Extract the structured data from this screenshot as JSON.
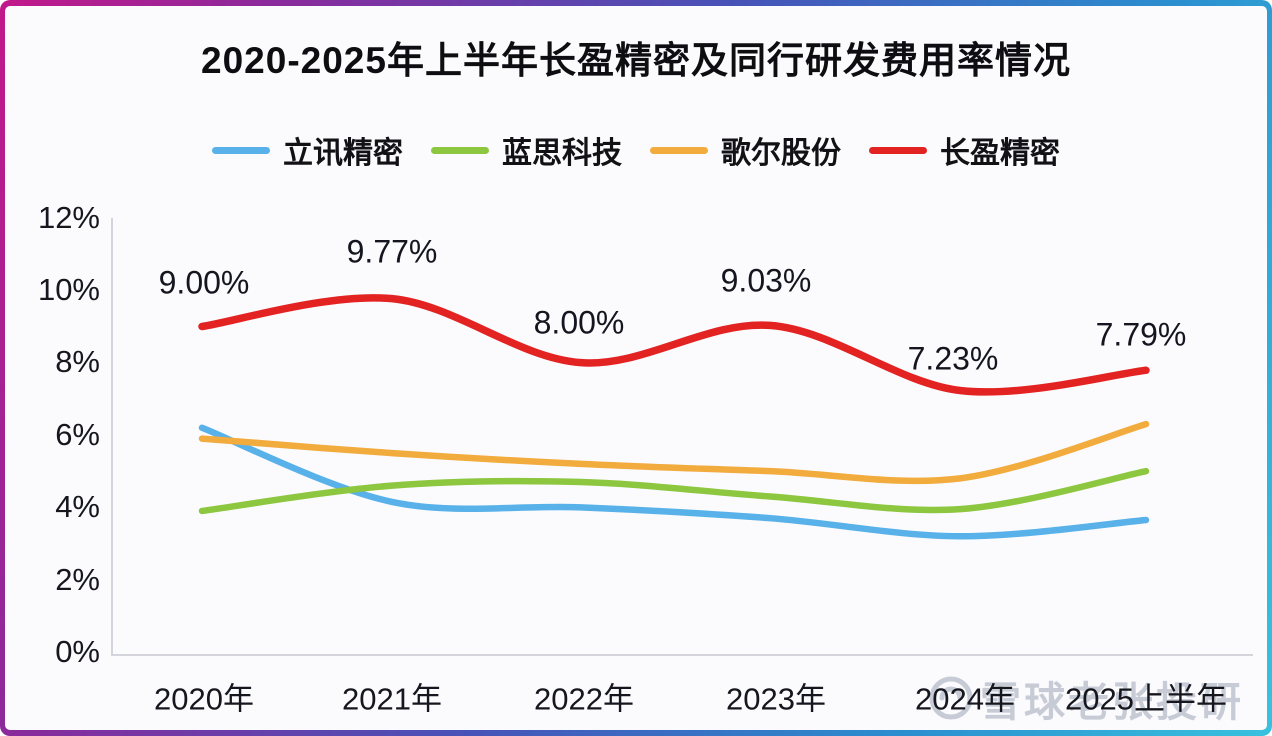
{
  "title": "2020-2025年上半年长盈精密及同行研发费用率情况",
  "frame": {
    "gradient_left": "#c2188a",
    "gradient_mid": "#4653b8",
    "gradient_right": "#38c2de",
    "background": "#fbfbfe"
  },
  "watermark": {
    "logo": "snowball-circle",
    "text1": "雪球",
    "text2": "老张投研"
  },
  "chart_data": {
    "type": "line",
    "title": "2020-2025年上半年长盈精密及同行研发费用率情况",
    "categories": [
      "2020年",
      "2021年",
      "2022年",
      "2023年",
      "2024年",
      "2025上半年"
    ],
    "xlabel": "",
    "ylabel": "",
    "ylim": [
      0,
      12
    ],
    "y_ticks": [
      "12%",
      "10%",
      "8%",
      "6%",
      "4%",
      "2%",
      "0%"
    ],
    "grid": false,
    "legend_position": "top",
    "series": [
      {
        "name": "立讯精密",
        "color": "#58b1e8",
        "values": [
          6.2,
          4.15,
          4.0,
          3.7,
          3.2,
          3.65
        ]
      },
      {
        "name": "蓝思科技",
        "color": "#8dc63f",
        "values": [
          3.9,
          4.6,
          4.7,
          4.3,
          3.95,
          5.0
        ]
      },
      {
        "name": "歌尔股份",
        "color": "#f2ab3d",
        "values": [
          5.9,
          5.5,
          5.2,
          5.0,
          4.8,
          6.3
        ]
      },
      {
        "name": "长盈精密",
        "color": "#e32222",
        "values": [
          9.0,
          9.77,
          8.0,
          9.03,
          7.23,
          7.79
        ],
        "point_labels": [
          "9.00%",
          "9.77%",
          "8.00%",
          "9.03%",
          "7.23%",
          "7.79%"
        ]
      }
    ]
  }
}
